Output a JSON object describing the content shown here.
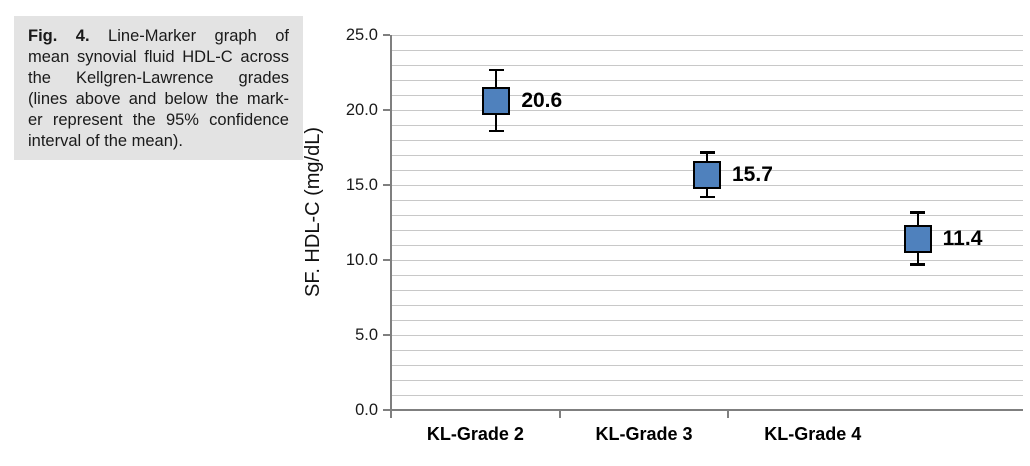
{
  "figure": {
    "caption": {
      "fig_label": "Fig. 4.",
      "lines": [
        "Line-Marker graph of",
        "mean synovial fluid HDL-C across",
        "the Kellgren-Lawrence grades",
        "(lines above and below the mark-",
        "er represent the 95% confidence",
        "interval of the mean)."
      ]
    }
  },
  "chart_data": {
    "type": "scatter",
    "subtype": "line-marker chart with 95% confidence interval error bars, no connecting line",
    "categories": [
      "KL-Grade 2",
      "KL-Grade 3",
      "KL-Grade 4"
    ],
    "values": [
      20.6,
      15.7,
      11.4
    ],
    "data_labels": [
      "20.6",
      "15.7",
      "11.4"
    ],
    "ci_upper": [
      22.7,
      17.2,
      13.2
    ],
    "ci_lower": [
      18.6,
      14.2,
      9.7
    ],
    "title": "",
    "xlabel": "",
    "ylabel": "SF. HDL-C (mg/dL)",
    "ylim": [
      0,
      25
    ],
    "ytick_step": 5,
    "ytick_labels": [
      "0.0",
      "5.0",
      "10.0",
      "15.0",
      "20.0",
      "25.0"
    ],
    "minor_gridline_step": 1,
    "grid": true,
    "legend": false,
    "colors": {
      "marker_fill": "#4F81BD",
      "marker_border": "#000000",
      "error_bar": "#000000",
      "gridline": "#C8C8C8",
      "axis": "#7F7F7F",
      "tick_label": "#1a1a1a",
      "data_label": "#000000",
      "caption_bg": "#E3E3E3"
    }
  }
}
